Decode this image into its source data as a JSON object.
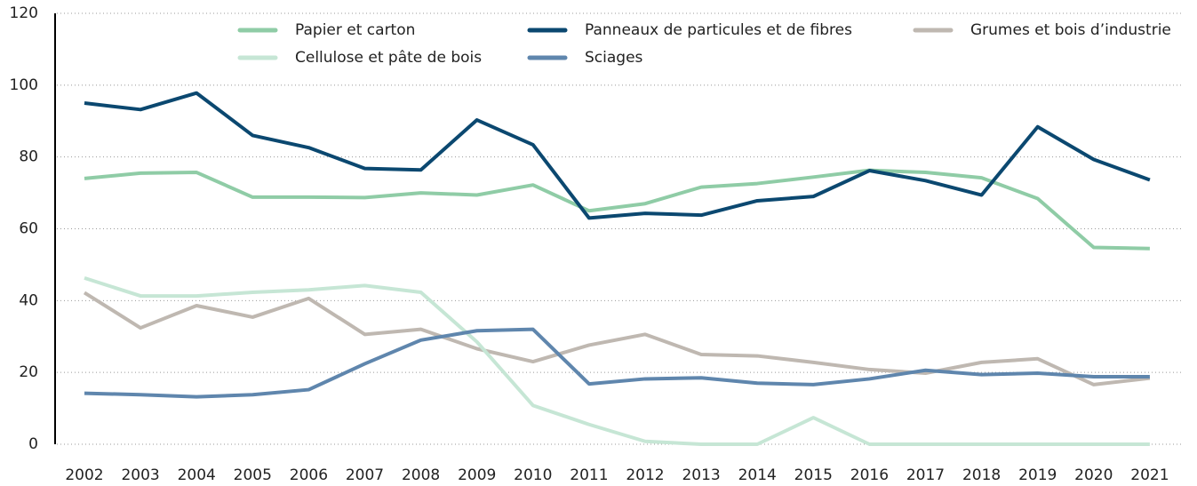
{
  "chart_data": {
    "type": "line",
    "categories": [
      "2002",
      "2003",
      "2004",
      "2005",
      "2006",
      "2007",
      "2008",
      "2009",
      "2010",
      "2011",
      "2012",
      "2013",
      "2014",
      "2015",
      "2016",
      "2017",
      "2018",
      "2019",
      "2020",
      "2021"
    ],
    "series": [
      {
        "name": "Papier et carton",
        "color": "#8fcca6",
        "values": [
          74,
          75.5,
          75.7,
          68.8,
          68.8,
          68.7,
          70,
          69.4,
          72.2,
          65,
          67,
          71.6,
          72.6,
          74.4,
          76.3,
          75.7,
          74.2,
          68.4,
          54.8,
          54.5
        ]
      },
      {
        "name": "Panneaux de particules et  de fibres",
        "color": "#0b4870",
        "values": [
          95,
          93.2,
          97.8,
          86,
          82.6,
          76.8,
          76.4,
          90.3,
          83.4,
          63,
          64.3,
          63.8,
          67.8,
          69,
          76.2,
          73.4,
          69.4,
          88.4,
          79.3,
          73.6
        ]
      },
      {
        "name": "Grumes et bois d’industrie",
        "color": "#bfb8b1",
        "values": [
          42.2,
          32.4,
          38.6,
          35.4,
          40.6,
          30.6,
          32,
          26.6,
          23,
          27.6,
          30.6,
          25,
          24.6,
          22.8,
          20.8,
          19.8,
          22.8,
          23.8,
          16.6,
          18.4
        ]
      },
      {
        "name": "Cellulose et pâte de bois",
        "color": "#c6e6d5",
        "values": [
          46.3,
          41.3,
          41.3,
          42.3,
          43,
          44.2,
          42.3,
          28.5,
          10.8,
          5.5,
          0.8,
          0,
          0,
          7.4,
          0,
          0,
          0,
          0,
          0,
          0
        ]
      },
      {
        "name": "Sciages",
        "color": "#5f86ad",
        "values": [
          14.2,
          13.8,
          13.2,
          13.8,
          15.2,
          22.4,
          29,
          31.6,
          32,
          16.8,
          18.2,
          18.5,
          17,
          16.6,
          18.2,
          20.6,
          19.4,
          19.8,
          18.8,
          18.8
        ]
      }
    ],
    "ylim": [
      0,
      120
    ],
    "yticks": [
      0,
      20,
      40,
      60,
      80,
      100,
      120
    ],
    "grid": true
  }
}
